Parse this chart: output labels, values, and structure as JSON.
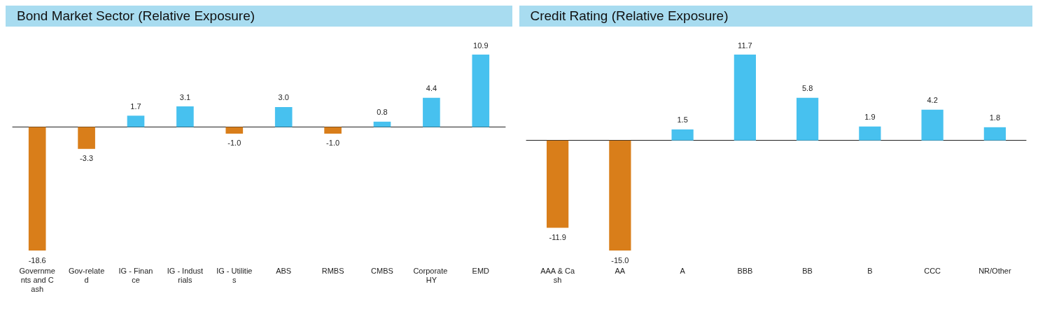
{
  "chart_data": [
    {
      "type": "bar",
      "title": "Bond Market Sector (Relative Exposure)",
      "categories": [
        "Governments and Cash",
        "Gov-related",
        "IG - Finance",
        "IG - Industrials",
        "IG - Utilities",
        "ABS",
        "RMBS",
        "CMBS",
        "Corporate HY",
        "EMD"
      ],
      "values": [
        -18.6,
        -3.3,
        1.7,
        3.1,
        -1.0,
        3.0,
        -1.0,
        0.8,
        4.4,
        10.9
      ],
      "colors": [
        "#d97e1a",
        "#d97e1a",
        "#47c1ef",
        "#47c1ef",
        "#d97e1a",
        "#47c1ef",
        "#d97e1a",
        "#47c1ef",
        "#47c1ef",
        "#47c1ef"
      ],
      "value_labels": [
        "-18.6",
        "-3.3",
        "1.7",
        "3.1",
        "-1.0",
        "3.0",
        "-1.0",
        "0.8",
        "4.4",
        "10.9"
      ]
    },
    {
      "type": "bar",
      "title": "Credit Rating (Relative Exposure)",
      "categories": [
        "AAA & Cash",
        "AA",
        "A",
        "BBB",
        "BB",
        "B",
        "CCC",
        "NR/Other"
      ],
      "values": [
        -11.9,
        -15.0,
        1.5,
        11.7,
        5.8,
        1.9,
        4.2,
        1.8
      ],
      "colors": [
        "#d97e1a",
        "#d97e1a",
        "#47c1ef",
        "#47c1ef",
        "#47c1ef",
        "#47c1ef",
        "#47c1ef",
        "#47c1ef"
      ],
      "value_labels": [
        "-11.9",
        "-15.0",
        "1.5",
        "11.7",
        "5.8",
        "1.9",
        "4.2",
        "1.8"
      ]
    }
  ]
}
